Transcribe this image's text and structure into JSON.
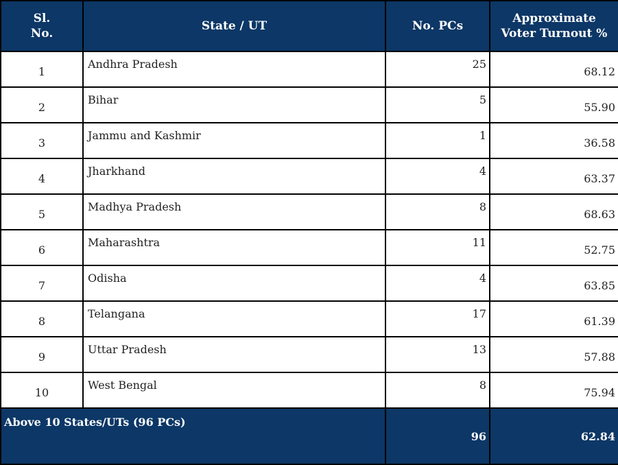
{
  "headers": {
    "sl": "Sl. No.",
    "state": "State / UT",
    "pcs": "No. PCs",
    "turnout_line1": "Approximate",
    "turnout_line2": "Voter Turnout %"
  },
  "rows": [
    {
      "sl": "1",
      "state": "Andhra Pradesh",
      "pcs": "25",
      "turnout": "68.12"
    },
    {
      "sl": "2",
      "state": "Bihar",
      "pcs": "5",
      "turnout": "55.90"
    },
    {
      "sl": "3",
      "state": "Jammu and Kashmir",
      "pcs": "1",
      "turnout": "36.58"
    },
    {
      "sl": "4",
      "state": "Jharkhand",
      "pcs": "4",
      "turnout": "63.37"
    },
    {
      "sl": "5",
      "state": "Madhya Pradesh",
      "pcs": "8",
      "turnout": "68.63"
    },
    {
      "sl": "6",
      "state": "Maharashtra",
      "pcs": "11",
      "turnout": "52.75"
    },
    {
      "sl": "7",
      "state": "Odisha",
      "pcs": "4",
      "turnout": "63.85"
    },
    {
      "sl": "8",
      "state": "Telangana",
      "pcs": "17",
      "turnout": "61.39"
    },
    {
      "sl": "9",
      "state": "Uttar Pradesh",
      "pcs": "13",
      "turnout": "57.88"
    },
    {
      "sl": "10",
      "state": "West Bengal",
      "pcs": "8",
      "turnout": "75.94"
    }
  ],
  "total": {
    "label": "Above 10 States/UTs (96 PCs)",
    "pcs": "96",
    "turnout": "62.84"
  },
  "colors": {
    "header_bg": "#0c3766",
    "header_text": "#ffffff"
  }
}
